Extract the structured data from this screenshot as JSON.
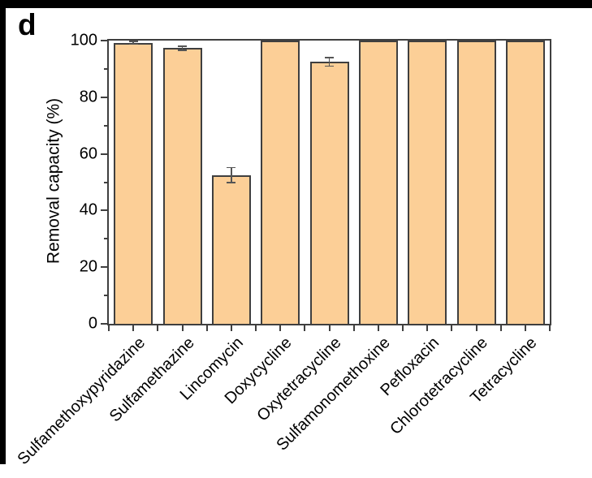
{
  "panel_label": "d",
  "colors": {
    "bar_fill": "#fccf97",
    "bar_border": "#3f3f3f",
    "axis": "#3f3f3f",
    "error": "#555555",
    "frame": "#000000",
    "background": "#ffffff"
  },
  "chart_data": {
    "type": "bar",
    "title": "",
    "ylabel": "Removal capacity (%)",
    "xlabel": "",
    "ylim": [
      0,
      100
    ],
    "yticks_major": [
      0,
      20,
      40,
      60,
      80,
      100
    ],
    "yticks_minor_step": 10,
    "grid": "off",
    "legend": "none",
    "categories": [
      "Sulfamethoxypyridazine",
      "Sulfamethazine",
      "Lincomycin",
      "Doxycycline",
      "Oxytetracycline",
      "Sulfamonomethoxine",
      "Pefloxacin",
      "Chlorotetracycline",
      "Tetracycline"
    ],
    "values": [
      99.2,
      97.3,
      52.5,
      100,
      92.5,
      100,
      100,
      100,
      100
    ],
    "errors": [
      0.4,
      0.7,
      2.6,
      0,
      1.5,
      0,
      0,
      0,
      0
    ]
  }
}
